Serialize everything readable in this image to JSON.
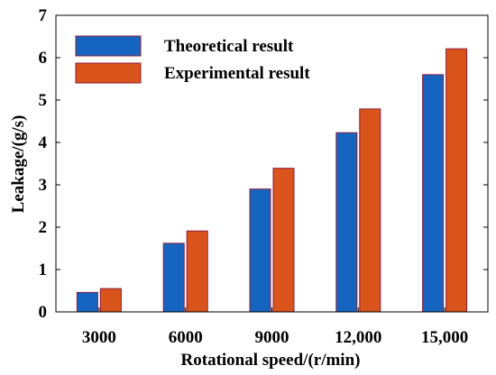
{
  "chart_data": {
    "type": "bar",
    "title": "",
    "xlabel": "Rotational speed/(r/min)",
    "ylabel": "Leakage/(g/s)",
    "categories": [
      "3000",
      "6000",
      "9000",
      "12,000",
      "15,000"
    ],
    "ylim": [
      0,
      7
    ],
    "yticks": [
      "0",
      "1",
      "2",
      "3",
      "4",
      "5",
      "6",
      "7"
    ],
    "grid": false,
    "legend_position": "top-left",
    "series": [
      {
        "name": "Theoretical result",
        "values": [
          0.46,
          1.62,
          2.9,
          4.23,
          5.6
        ],
        "color": "#1565C0"
      },
      {
        "name": "Experimental result",
        "values": [
          0.55,
          1.91,
          3.39,
          4.79,
          6.21
        ],
        "color": "#D9541A"
      }
    ],
    "bar_edge_color": "#8B1A3A"
  }
}
